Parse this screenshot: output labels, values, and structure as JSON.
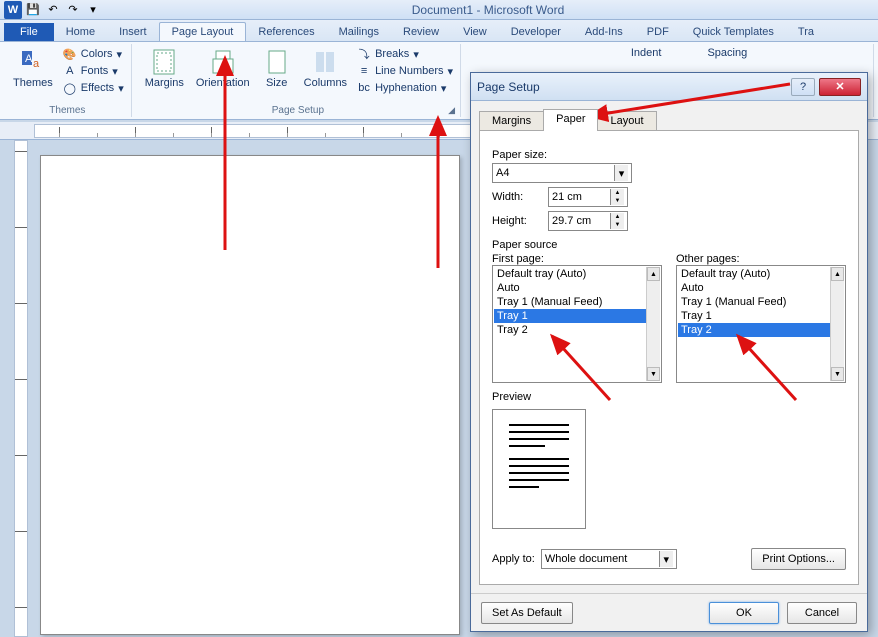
{
  "title": "Document1  -  Microsoft Word",
  "tabs": [
    "File",
    "Home",
    "Insert",
    "Page Layout",
    "References",
    "Mailings",
    "Review",
    "View",
    "Developer",
    "Add-Ins",
    "PDF",
    "Quick Templates",
    "Tra"
  ],
  "active_tab": 3,
  "themes_group": {
    "label": "Themes",
    "themes": "Themes",
    "colors": "Colors",
    "fonts": "Fonts",
    "effects": "Effects"
  },
  "pagesetup_group": {
    "label": "Page Setup",
    "margins": "Margins",
    "orientation": "Orientation",
    "size": "Size",
    "columns": "Columns",
    "breaks": "Breaks",
    "linenumbers": "Line Numbers",
    "hyphenation": "Hyphenation"
  },
  "indent_label": "Indent",
  "spacing_label": "Spacing",
  "dialog": {
    "title": "Page Setup",
    "tabs": [
      "Margins",
      "Paper",
      "Layout"
    ],
    "active": 1,
    "paper_size_label": "Paper size:",
    "paper_size": "A4",
    "width_label": "Width:",
    "width": "21 cm",
    "height_label": "Height:",
    "height": "29.7 cm",
    "paper_source_label": "Paper source",
    "first_page_label": "First page:",
    "other_pages_label": "Other pages:",
    "first_list": [
      "Default tray (Auto)",
      "Auto",
      "Tray 1 (Manual Feed)",
      "Tray 1",
      "Tray 2"
    ],
    "first_sel": 3,
    "other_list": [
      "Default tray (Auto)",
      "Auto",
      "Tray 1 (Manual Feed)",
      "Tray 1",
      "Tray 2"
    ],
    "other_sel": 4,
    "preview_label": "Preview",
    "apply_label": "Apply to:",
    "apply_value": "Whole document",
    "print_options": "Print Options...",
    "set_default": "Set As Default",
    "ok": "OK",
    "cancel": "Cancel"
  }
}
